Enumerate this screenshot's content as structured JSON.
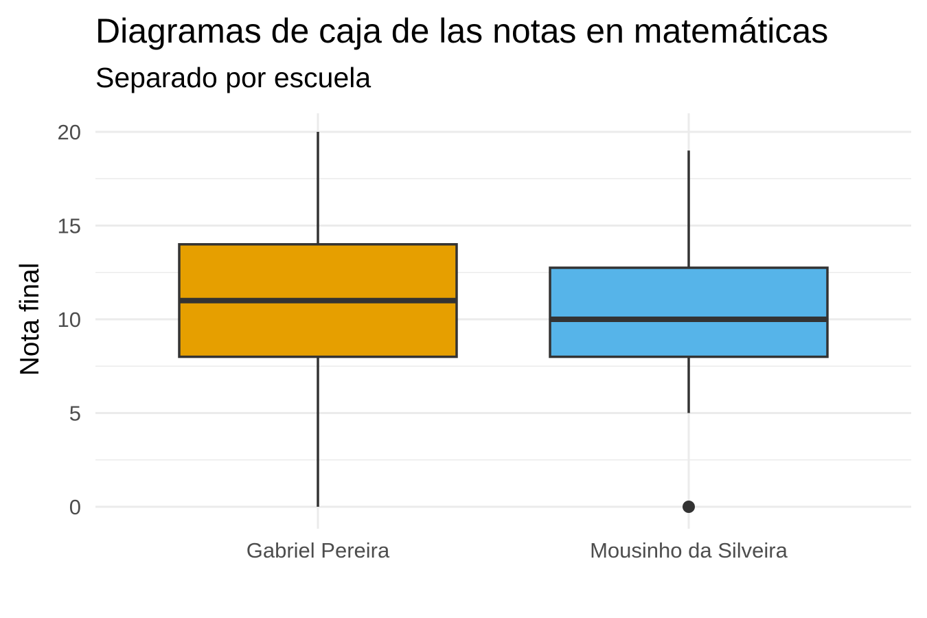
{
  "chart_data": {
    "type": "boxplot",
    "title": "Diagramas de caja de las notas en matemáticas",
    "subtitle": "Separado por escuela",
    "xlabel": "",
    "ylabel": "Nota final",
    "ylim": [
      0,
      20
    ],
    "yticks": [
      0,
      5,
      10,
      15,
      20
    ],
    "grid": true,
    "categories": [
      "Gabriel Pereira",
      "Mousinho da Silveira"
    ],
    "boxes": [
      {
        "category": "Gabriel Pereira",
        "min": 0,
        "q1": 8,
        "median": 11,
        "q3": 14,
        "max": 20,
        "outliers": [],
        "color": "#E69F00"
      },
      {
        "category": "Mousinho da Silveira",
        "min": 5,
        "q1": 8,
        "median": 10,
        "q3": 12.75,
        "max": 19,
        "outliers": [
          0
        ],
        "color": "#56B4E9"
      }
    ]
  }
}
